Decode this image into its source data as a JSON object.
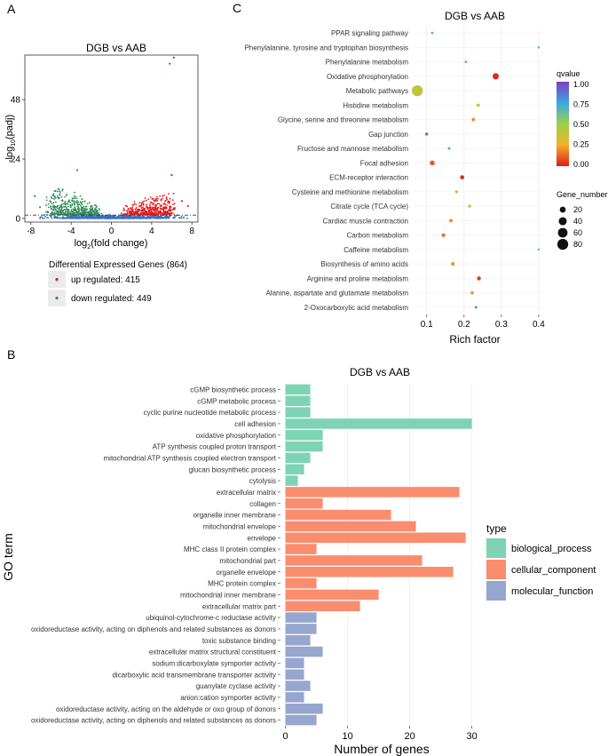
{
  "panel_labels": {
    "a": "A",
    "b": "B",
    "c": "C"
  },
  "colors": {
    "up": "#e41a1c",
    "down": "#2e8b57",
    "ns": "#3a6fc4",
    "biological_process": "#7fd3b5",
    "cellular_component": "#f98d6e",
    "molecular_function": "#96a6cf",
    "grid": "#ececec",
    "panel_bg": "#ffffff",
    "legend_key_bg": "#ebebeb"
  },
  "chart_data": [
    {
      "id": "volcano",
      "type": "scatter",
      "title": "DGB vs AAB",
      "xlabel": "log2(fold change)",
      "xlabel_main": "log",
      "xlabel_sub": "2",
      "xlabel_rest": "(fold change)",
      "ylabel": "-log10(padj)",
      "ylabel_main": "-log",
      "ylabel_sub": "10",
      "ylabel_rest": "(padj)",
      "xlim": [
        -8.6,
        8.6
      ],
      "ylim": [
        -1.5,
        66
      ],
      "xticks": [
        -8,
        -4,
        0,
        4,
        8
      ],
      "yticks": [
        0,
        24,
        48
      ],
      "threshold_y": 1.3,
      "legend_title": "Differential Expressed Genes (864)",
      "legend_items": [
        {
          "label": "up regulated: 415",
          "color_key": "up"
        },
        {
          "label": "down regulated: 449",
          "color_key": "down"
        }
      ],
      "highlight_points": [
        {
          "x": 6.2,
          "y": 65.0,
          "group": "up"
        },
        {
          "x": 5.8,
          "y": 62.5,
          "group": "up"
        },
        {
          "x": 6.0,
          "y": 17.5,
          "group": "up"
        },
        {
          "x": 7.0,
          "y": 7.0,
          "group": "up"
        },
        {
          "x": 7.6,
          "y": 5.0,
          "group": "up"
        },
        {
          "x": -3.4,
          "y": 19.5,
          "group": "down"
        },
        {
          "x": -7.6,
          "y": 9.0,
          "group": "down"
        },
        {
          "x": -7.1,
          "y": 4.5,
          "group": "down"
        },
        {
          "x": -6.3,
          "y": 2.5,
          "group": "down"
        }
      ]
    },
    {
      "id": "go",
      "type": "bar",
      "orientation": "horizontal",
      "title": "DGB vs AAB",
      "xlabel": "Number of genes",
      "ylabel": "GO term",
      "xlim": [
        -0.8,
        31.2
      ],
      "xticks": [
        0,
        10,
        20,
        30
      ],
      "legend_title": "type",
      "legend_items": [
        {
          "label": "biological_process",
          "color_key": "biological_process"
        },
        {
          "label": "cellular_component",
          "color_key": "cellular_component"
        },
        {
          "label": "molecular_function",
          "color_key": "molecular_function"
        }
      ],
      "categories": [
        "cGMP biosynthetic process",
        "cGMP metabolic process",
        "cyclic purine nucleotide metabolic process",
        "cell adhesion",
        "oxidative phosphorylation",
        "ATP synthesis coupled proton transport",
        "mitochondrial ATP synthesis coupled electron transport",
        "glucan biosynthetic process",
        "cytolysis",
        "extracellular matrix",
        "collagen",
        "organelle inner membrane",
        "mitochondrial envelope",
        "envelope",
        "MHC class II protein complex",
        "mitochondrial part",
        "organelle envelope",
        "MHC protein complex",
        "mitochondrial inner membrane",
        "extracellular matrix part",
        "ubiquinol-cytochrome-c reductase activity",
        "oxidoreductase activity, acting on diphenols and related substances as donors",
        "toxic substance binding",
        "extracellular matrix structural constituent",
        "sodium:dicarboxylate symporter activity",
        "dicarboxylic acid transmembrane transporter activity",
        "guanylate cyclase activity",
        "anion:cation symporter activity",
        "oxidoreductase activity, acting on the aldehyde or oxo group of donors",
        "oxidoreductase activity, acting on diphenols and related substances as donors"
      ],
      "values": [
        4,
        4,
        4,
        30,
        6,
        6,
        4,
        3,
        2,
        28,
        6,
        17,
        21,
        29,
        5,
        22,
        27,
        5,
        15,
        12,
        5,
        5,
        4,
        6,
        3,
        3,
        4,
        3,
        6,
        5
      ],
      "types": [
        "biological_process",
        "biological_process",
        "biological_process",
        "biological_process",
        "biological_process",
        "biological_process",
        "biological_process",
        "biological_process",
        "biological_process",
        "cellular_component",
        "cellular_component",
        "cellular_component",
        "cellular_component",
        "cellular_component",
        "cellular_component",
        "cellular_component",
        "cellular_component",
        "cellular_component",
        "cellular_component",
        "cellular_component",
        "molecular_function",
        "molecular_function",
        "molecular_function",
        "molecular_function",
        "molecular_function",
        "molecular_function",
        "molecular_function",
        "molecular_function",
        "molecular_function",
        "molecular_function"
      ]
    },
    {
      "id": "kegg",
      "type": "scatter",
      "title": "DGB vs AAB",
      "xlabel": "Rich factor",
      "xlim": [
        0.065,
        0.405
      ],
      "xticks": [
        0.1,
        0.2,
        0.3,
        0.4
      ],
      "xtick_labels": [
        "0.1",
        "0.2",
        "0.3",
        "0.4"
      ],
      "color_legend_title": "qvalue",
      "color_ticks": [
        "1.00",
        "0.75",
        "0.50",
        "0.25",
        "0.00"
      ],
      "size_legend_title": "Gene_number",
      "size_ticks": [
        20,
        40,
        60,
        80
      ],
      "categories": [
        "PPAR signaling pathway",
        "Phenylalanine, tyrosine and tryptophan biosynthesis",
        "Phenylalanine metabolism",
        "Oxidative phosphorylation",
        "Metabolic pathways",
        "Histidine metabolism",
        "Glycine, serine and threonine metabolism",
        "Gap junction",
        "Fructose and mannose metabolism",
        "Focal adhesion",
        "ECM-receptor interaction",
        "Cysteine and methionine metabolism",
        "Citrate cycle (TCA cycle)",
        "Cardiac muscle contraction",
        "Carbon metabolism",
        "Caffeine metabolism",
        "Biosynthesis of amino acids",
        "Arginine and proline metabolism",
        "Alanine, aspartate and glutamate metabolism",
        "2-Oxocarboxylic acid metabolism"
      ],
      "rich_factor": [
        0.115,
        0.4,
        0.205,
        0.285,
        0.075,
        0.238,
        0.225,
        0.1,
        0.16,
        0.115,
        0.195,
        0.18,
        0.215,
        0.165,
        0.145,
        0.4,
        0.17,
        0.24,
        0.222,
        0.232
      ],
      "gene_number": [
        2,
        1,
        2,
        22,
        80,
        4,
        4,
        3,
        2,
        12,
        8,
        3,
        3,
        5,
        6,
        1,
        6,
        7,
        4,
        2
      ],
      "qvalue": [
        0.6,
        0.7,
        0.6,
        0.02,
        0.4,
        0.3,
        0.18,
        0.9,
        0.7,
        0.1,
        0.03,
        0.4,
        0.4,
        0.2,
        0.15,
        0.6,
        0.2,
        0.05,
        0.2,
        0.8
      ]
    }
  ]
}
